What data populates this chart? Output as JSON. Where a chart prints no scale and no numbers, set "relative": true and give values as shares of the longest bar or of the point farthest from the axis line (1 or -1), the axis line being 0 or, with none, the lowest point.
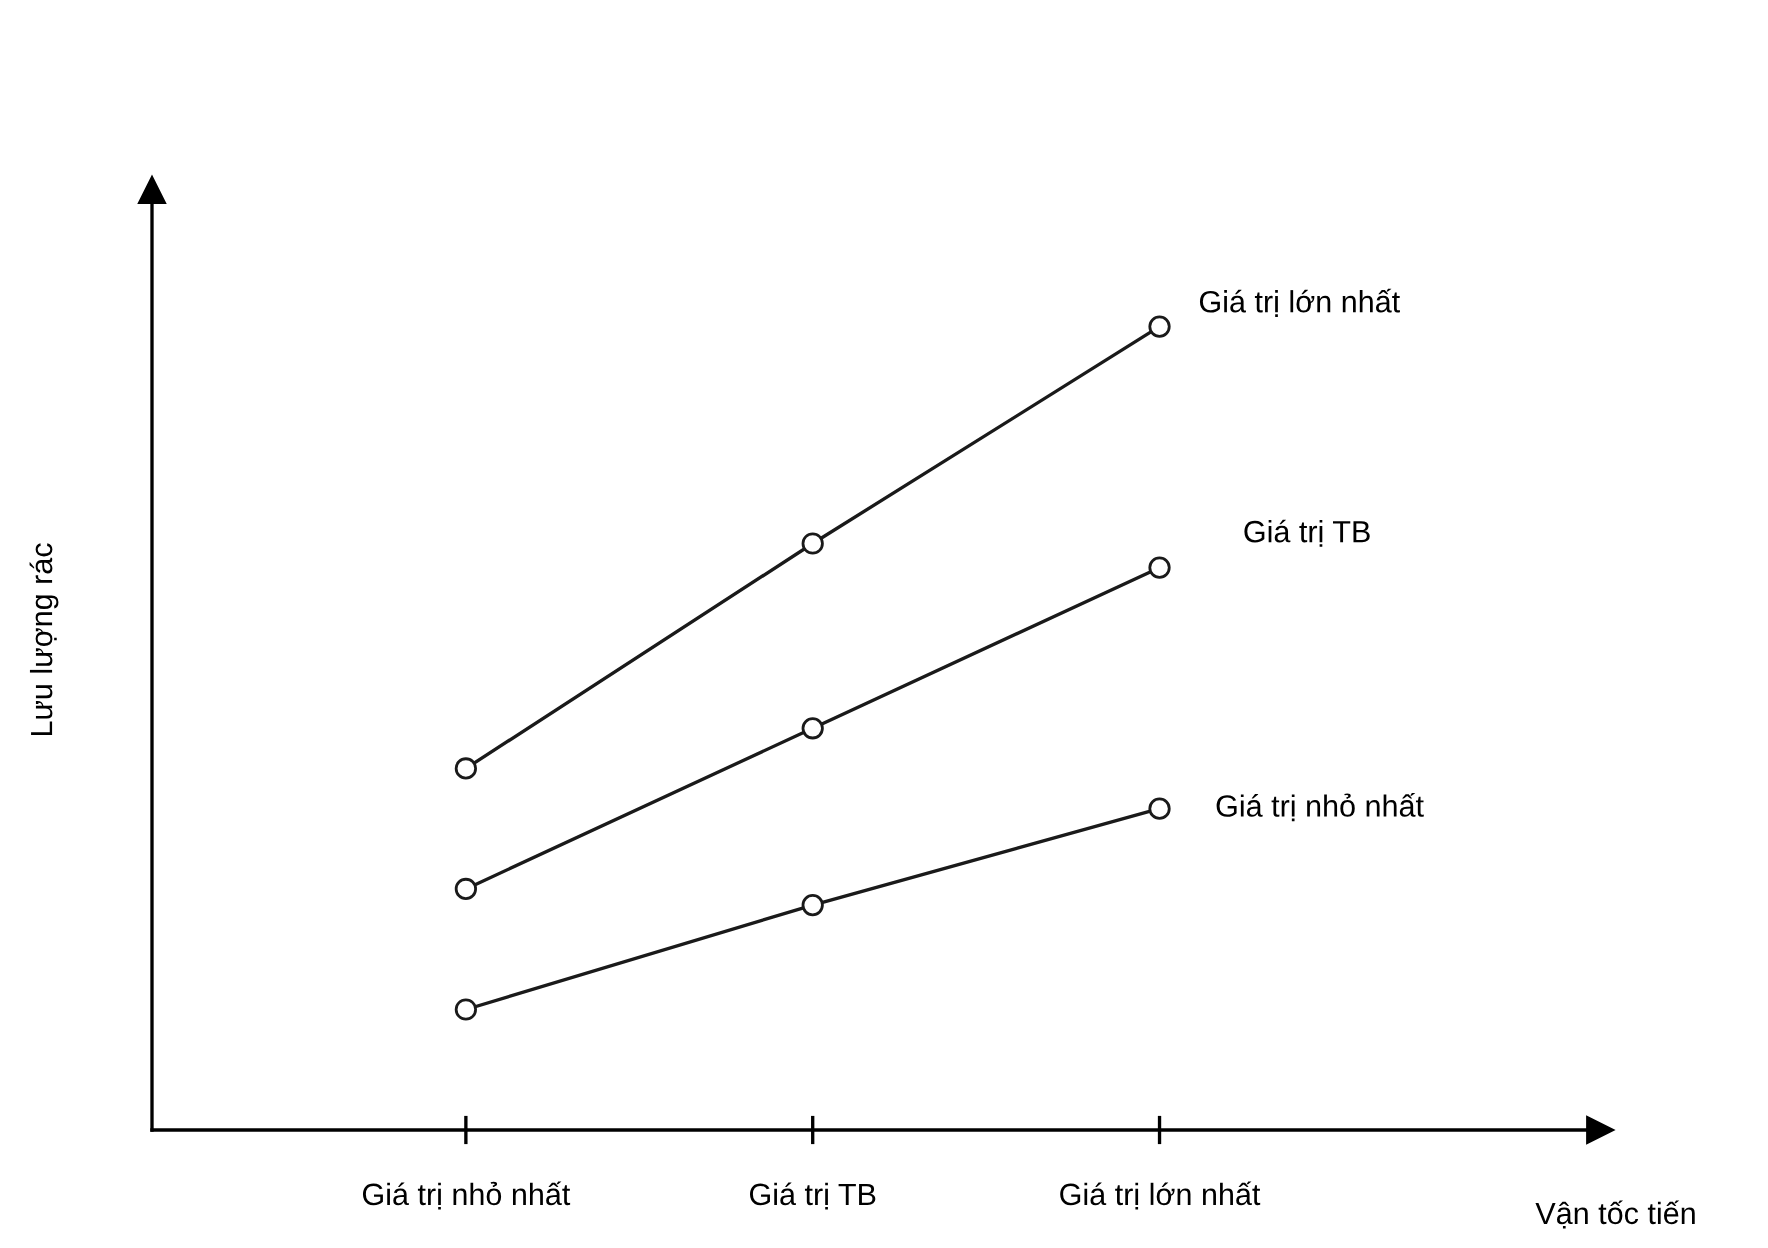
{
  "chart_data": {
    "type": "line",
    "relative": true,
    "xlabel": "Vận tốc tiến",
    "ylabel": "Lưu lượng rác",
    "categories": [
      "Giá trị nhỏ nhất",
      "Giá trị TB",
      "Giá trị lớn nhất"
    ],
    "series": [
      {
        "name": "Giá trị lớn nhất",
        "color": "#1a1a1a",
        "values": [
          0.45,
          0.73,
          1.0
        ]
      },
      {
        "name": "Giá trị TB",
        "color": "#1a1a1a",
        "values": [
          0.3,
          0.5,
          0.7
        ]
      },
      {
        "name": "Giá trị nhỏ nhất",
        "color": "#1a1a1a",
        "values": [
          0.15,
          0.28,
          0.4
        ]
      }
    ],
    "marker": "circle",
    "line_style": "solid",
    "grid": false,
    "legend": false
  }
}
